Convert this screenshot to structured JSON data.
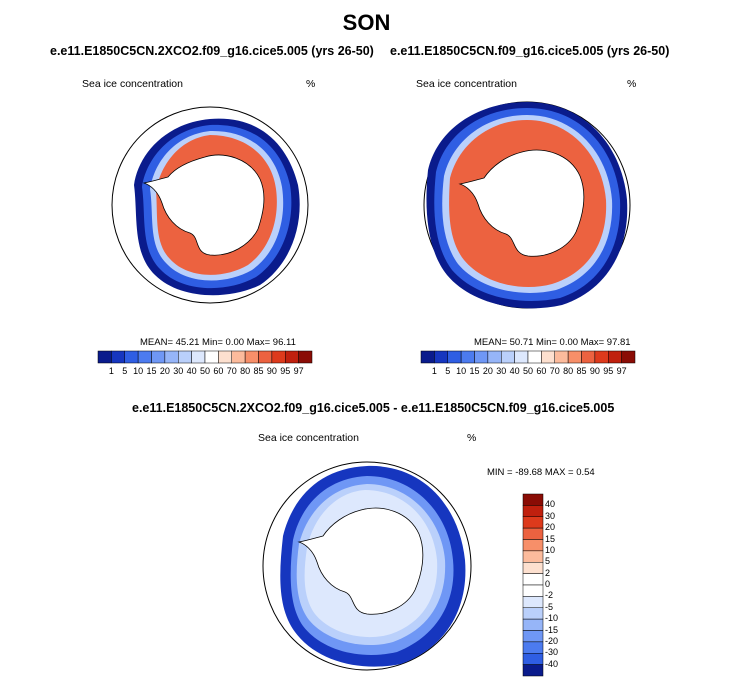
{
  "title": "SON",
  "panels": [
    {
      "heading": "e.e11.E1850C5CN.2XCO2.f09_g16.cice5.005 (yrs 26-50)",
      "variable": "Sea ice concentration",
      "units": "%",
      "stats": "MEAN=  45.21  Min=   0.00  Max=  96.11"
    },
    {
      "heading": "e.e11.E1850C5CN.f09_g16.cice5.005 (yrs 26-50)",
      "variable": "Sea ice concentration",
      "units": "%",
      "stats": "MEAN=  50.71  Min=   0.00  Max=  97.81"
    }
  ],
  "diff_panel": {
    "heading": "e.e11.E1850C5CN.2XCO2.f09_g16.cice5.005 - e.e11.E1850C5CN.f09_g16.cice5.005",
    "variable": "Sea ice concentration",
    "units": "%",
    "stats": "MIN = -89.68 MAX =   0.54"
  },
  "colorbar_horizontal": {
    "labels": [
      "1",
      "5",
      "10",
      "15",
      "20",
      "30",
      "40",
      "50",
      "60",
      "70",
      "80",
      "85",
      "90",
      "95",
      "97"
    ],
    "colors": [
      "#0a1b8c",
      "#1636bf",
      "#2f5ee3",
      "#4c7bef",
      "#6f97f5",
      "#96b5f8",
      "#bad0fb",
      "#dde8fd",
      "#ffffff",
      "#fde0cf",
      "#fcbb9c",
      "#f78f69",
      "#ec6240",
      "#dd3a1c",
      "#c0200e",
      "#8a0c05"
    ]
  },
  "colorbar_vertical": {
    "labels": [
      "40",
      "30",
      "20",
      "15",
      "10",
      "5",
      "2",
      "0",
      "-2",
      "-5",
      "-10",
      "-15",
      "-20",
      "-30",
      "-40"
    ],
    "colors": [
      "#8a0c05",
      "#c0200e",
      "#dd3a1c",
      "#ec6240",
      "#f78f69",
      "#fcbb9c",
      "#fde0cf",
      "#ffffff",
      "#ffffff",
      "#dde8fd",
      "#bad0fb",
      "#96b5f8",
      "#6f97f5",
      "#4c7bef",
      "#2f5ee3",
      "#0a1b8c"
    ]
  }
}
